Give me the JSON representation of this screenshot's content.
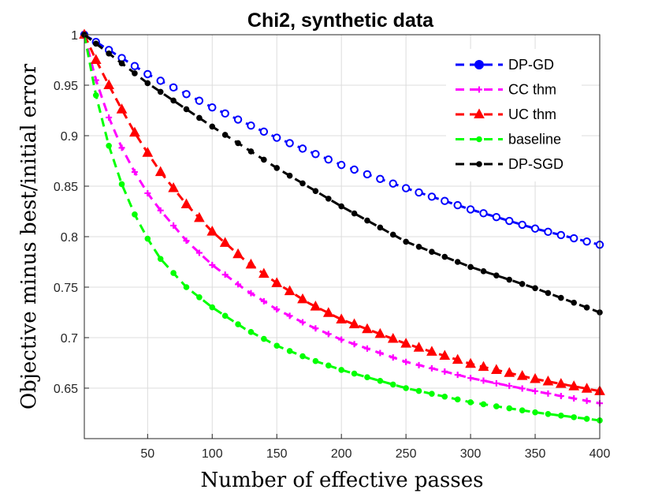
{
  "chart_data": {
    "type": "line",
    "title": "Chi2, synthetic data",
    "xlabel": "Number of effective passes",
    "ylabel": "Objective minus best/initial error",
    "xlim": [
      1,
      400
    ],
    "ylim": [
      0.6,
      1.0
    ],
    "xticks": [
      50,
      100,
      150,
      200,
      250,
      300,
      350,
      400
    ],
    "xtick_labels": [
      "50",
      "100",
      "150",
      "200",
      "250",
      "300",
      "350",
      "400"
    ],
    "yticks": [
      0.65,
      0.7,
      0.75,
      0.8,
      0.85,
      0.9,
      0.95,
      1.0
    ],
    "ytick_labels": [
      "0.65",
      "0.7",
      "0.75",
      "0.8",
      "0.85",
      "0.9",
      "0.95",
      "1"
    ],
    "grid": true,
    "legend_position": "top-right",
    "series": [
      {
        "name": "DP-GD",
        "color": "#0000ff",
        "marker": "circle-open",
        "x": [
          1,
          50,
          100,
          150,
          200,
          250,
          300,
          350,
          400
        ],
        "y": [
          1.0,
          0.961,
          0.928,
          0.898,
          0.871,
          0.848,
          0.827,
          0.808,
          0.792
        ]
      },
      {
        "name": "CC thm",
        "color": "#ff00ff",
        "marker": "plus",
        "x": [
          1,
          10,
          20,
          30,
          40,
          50,
          60,
          80,
          100,
          125,
          150,
          175,
          200,
          250,
          300,
          350,
          400
        ],
        "y": [
          1.0,
          0.955,
          0.918,
          0.888,
          0.864,
          0.843,
          0.826,
          0.796,
          0.772,
          0.748,
          0.728,
          0.712,
          0.698,
          0.676,
          0.66,
          0.647,
          0.635
        ]
      },
      {
        "name": "UC thm",
        "color": "#ff0000",
        "marker": "triangle",
        "x": [
          1,
          10,
          20,
          30,
          40,
          50,
          60,
          80,
          100,
          125,
          150,
          175,
          200,
          250,
          300,
          350,
          400
        ],
        "y": [
          1.0,
          0.975,
          0.95,
          0.926,
          0.903,
          0.883,
          0.864,
          0.832,
          0.805,
          0.777,
          0.754,
          0.734,
          0.718,
          0.694,
          0.674,
          0.659,
          0.647
        ]
      },
      {
        "name": "baseline",
        "color": "#00ff00",
        "marker": "dot",
        "x": [
          1,
          10,
          20,
          30,
          40,
          50,
          60,
          80,
          100,
          125,
          150,
          175,
          200,
          250,
          300,
          350,
          400
        ],
        "y": [
          1.0,
          0.94,
          0.89,
          0.852,
          0.822,
          0.798,
          0.778,
          0.75,
          0.73,
          0.709,
          0.692,
          0.679,
          0.668,
          0.65,
          0.636,
          0.626,
          0.618
        ]
      },
      {
        "name": "DP-SGD",
        "color": "#000000",
        "marker": "dot",
        "x": [
          1,
          50,
          100,
          150,
          200,
          250,
          300,
          350,
          400
        ],
        "y": [
          1.0,
          0.952,
          0.909,
          0.868,
          0.83,
          0.795,
          0.77,
          0.749,
          0.725
        ]
      }
    ]
  }
}
